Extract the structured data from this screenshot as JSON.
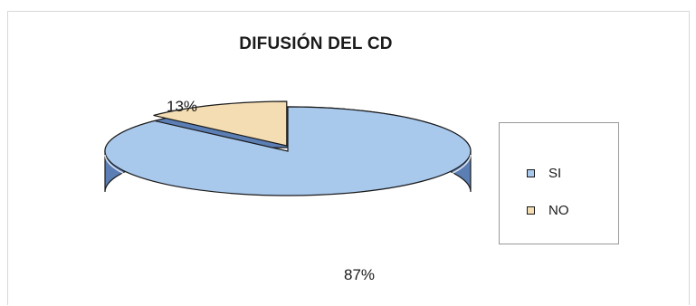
{
  "chart_data": {
    "type": "pie",
    "title": "DIFUSIÓN DEL CD",
    "categories": [
      "SI",
      "NO"
    ],
    "values": [
      87,
      13
    ],
    "data_labels": [
      "87%",
      "13%"
    ],
    "colors": [
      "#a8c8ec",
      "#f4ddb2"
    ],
    "side_colors": [
      "#5b7eb4",
      "#c9a874"
    ],
    "style": "3d",
    "legend_position": "right"
  }
}
